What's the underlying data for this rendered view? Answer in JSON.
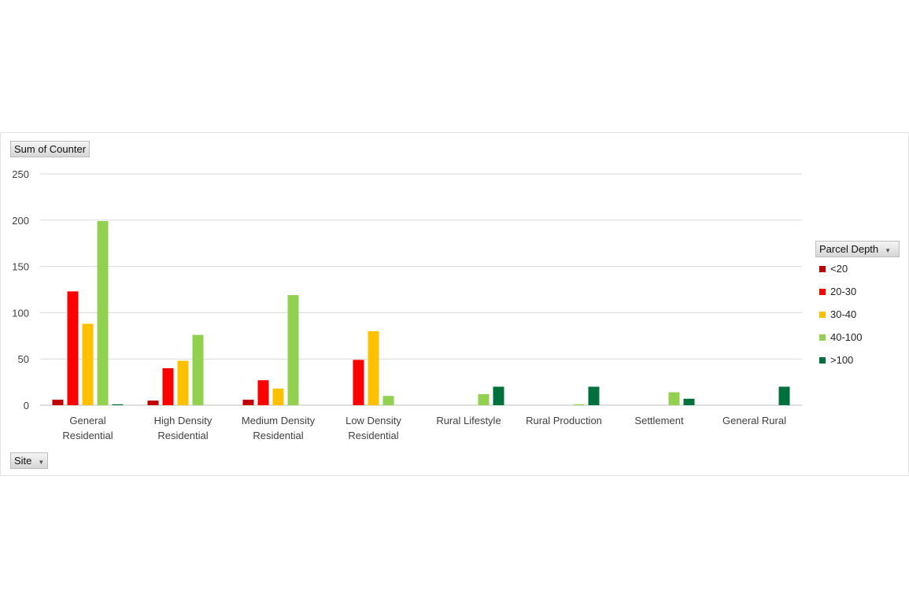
{
  "value_field": "Sum of Counter",
  "axis_field": "Site",
  "legend_field": "Parcel Depth",
  "chart_data": {
    "type": "bar",
    "ylim": [
      0,
      250
    ],
    "yticks": [
      0,
      50,
      100,
      150,
      200,
      250
    ],
    "grid": true,
    "legend_position": "right",
    "categories": [
      [
        "General",
        "Residential"
      ],
      [
        "High Density",
        "Residential"
      ],
      [
        "Medium Density",
        "Residential"
      ],
      [
        "Low Density",
        "Residential"
      ],
      [
        "Rural Lifestyle"
      ],
      [
        "Rural Production"
      ],
      [
        "Settlement"
      ],
      [
        "General Rural"
      ]
    ],
    "series": [
      {
        "name": "<20",
        "color": "#c00000",
        "values": [
          6,
          5,
          6,
          0,
          0,
          0,
          0,
          0
        ]
      },
      {
        "name": "20-30",
        "color": "#ff0000",
        "values": [
          123,
          40,
          27,
          49,
          0,
          0,
          0,
          0
        ]
      },
      {
        "name": "30-40",
        "color": "#ffc000",
        "values": [
          88,
          48,
          18,
          80,
          0,
          0,
          0,
          0
        ]
      },
      {
        "name": "40-100",
        "color": "#92d050",
        "values": [
          199,
          76,
          119,
          10,
          12,
          1,
          14,
          0
        ]
      },
      {
        "name": ">100",
        "color": "#00703c",
        "values": [
          1,
          0,
          0,
          0,
          20,
          20,
          7,
          20
        ]
      }
    ]
  }
}
